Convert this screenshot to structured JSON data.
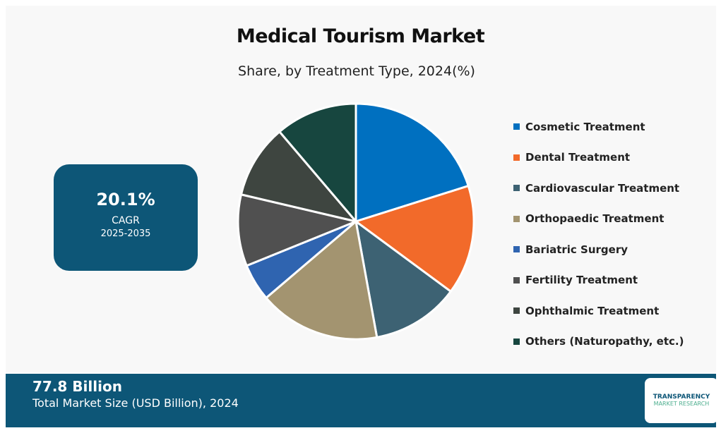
{
  "chart_data": {
    "type": "pie",
    "title": "Medical Tourism Market",
    "subtitle": "Share, by Treatment Type, 2024(%)",
    "categories": [
      "Cosmetic Treatment",
      "Dental Treatment",
      "Cardiovascular Treatment",
      "Orthopaedic Treatment",
      "Bariatric Surgery",
      "Fertility Treatment",
      "Ophthalmic Treatment",
      "Others (Naturopathy, etc.)"
    ],
    "values": [
      20.1,
      15.0,
      12.0,
      16.6,
      5.1,
      9.8,
      10.1,
      11.2
    ],
    "colors": [
      "#0070c0",
      "#f26a2a",
      "#3d6273",
      "#a39470",
      "#2f64b0",
      "#505050",
      "#3e4540",
      "#17463f"
    ],
    "legend_position": "right"
  },
  "cagr": {
    "value": "20.1%",
    "label": "CAGR",
    "years": "2025-2035"
  },
  "footer": {
    "value": "77.8 Billion",
    "label": "Total Market Size (USD Billion), 2024"
  },
  "logo": {
    "line1": "TRANSPARENCY",
    "line2": "MARKET RESEARCH"
  }
}
